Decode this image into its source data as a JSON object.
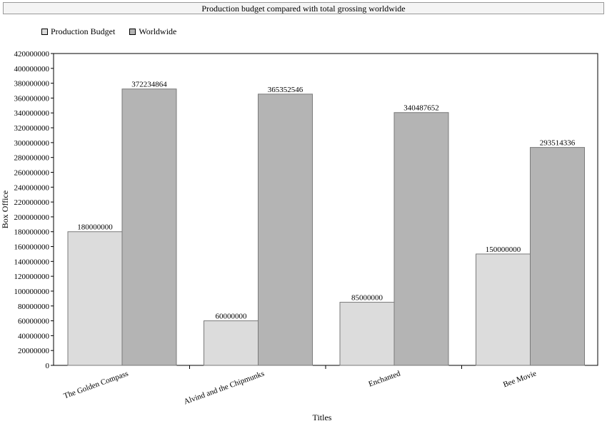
{
  "chart_data": {
    "type": "bar",
    "title": "Production budget compared with total grossing worldwide",
    "xlabel": "Titles",
    "ylabel": "Box Office",
    "categories": [
      "The Golden Compass",
      "Alvind and the Chipmunks",
      "Enchanted",
      "Bee Movie"
    ],
    "series": [
      {
        "name": "Production Budget",
        "values": [
          180000000,
          60000000,
          85000000,
          150000000
        ],
        "color": "#dcdcdc"
      },
      {
        "name": "Worldwide",
        "values": [
          372234864,
          365352546,
          340487652,
          293514336
        ],
        "color": "#b4b4b4"
      }
    ],
    "ylim": [
      0,
      420000000
    ],
    "ytick_step": 20000000,
    "legend": "top-left",
    "grid": false
  }
}
